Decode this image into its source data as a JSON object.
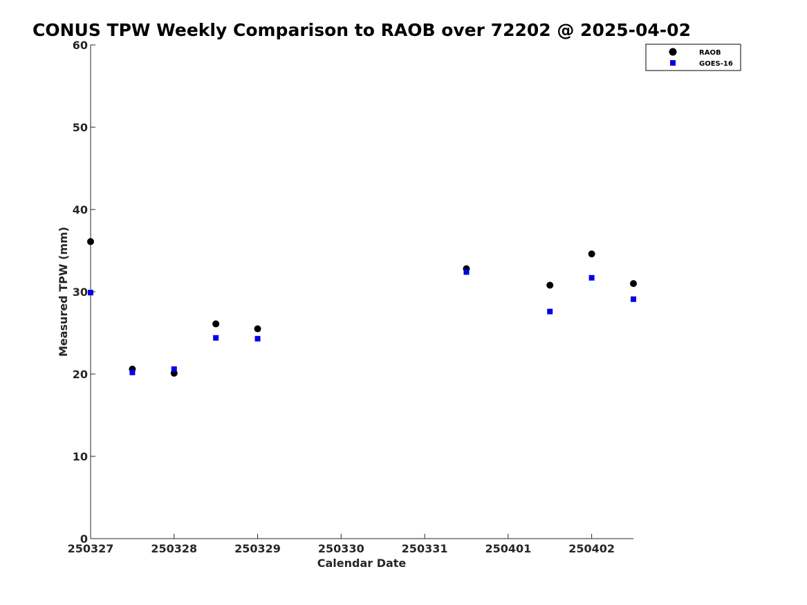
{
  "chart_data": {
    "type": "scatter",
    "title": "CONUS TPW Weekly Comparison to RAOB over 72202 @ 2025-04-02",
    "xlabel": "Calendar Date",
    "ylabel": "Measured TPW (mm)",
    "x_tick_labels": [
      "250327",
      "250328",
      "250329",
      "250330",
      "250331",
      "250401",
      "250402"
    ],
    "y_tick_labels": [
      "0",
      "10",
      "20",
      "30",
      "40",
      "50",
      "60"
    ],
    "ylim": [
      0,
      60
    ],
    "xlim": [
      "2025-03-27 00:00",
      "2025-04-02 12:00"
    ],
    "grid": false,
    "legend_position": "top-right",
    "series": [
      {
        "name": "RAOB",
        "marker": "circle",
        "color": "#000000",
        "points": [
          {
            "x": "2025-03-27 00:00",
            "y": 36.1
          },
          {
            "x": "2025-03-27 12:00",
            "y": 20.6
          },
          {
            "x": "2025-03-28 00:00",
            "y": 20.1
          },
          {
            "x": "2025-03-28 12:00",
            "y": 26.1
          },
          {
            "x": "2025-03-29 00:00",
            "y": 25.5
          },
          {
            "x": "2025-03-31 12:00",
            "y": 32.8
          },
          {
            "x": "2025-04-01 12:00",
            "y": 30.8
          },
          {
            "x": "2025-04-02 00:00",
            "y": 34.6
          },
          {
            "x": "2025-04-02 12:00",
            "y": 31.0
          }
        ]
      },
      {
        "name": "GOES-16",
        "marker": "square",
        "color": "#0000e6",
        "points": [
          {
            "x": "2025-03-27 00:00",
            "y": 29.9
          },
          {
            "x": "2025-03-27 12:00",
            "y": 20.2
          },
          {
            "x": "2025-03-28 00:00",
            "y": 20.6
          },
          {
            "x": "2025-03-28 12:00",
            "y": 24.4
          },
          {
            "x": "2025-03-29 00:00",
            "y": 24.3
          },
          {
            "x": "2025-03-31 12:00",
            "y": 32.4
          },
          {
            "x": "2025-04-01 12:00",
            "y": 27.6
          },
          {
            "x": "2025-04-02 00:00",
            "y": 31.7
          },
          {
            "x": "2025-04-02 12:00",
            "y": 29.1
          }
        ]
      }
    ]
  }
}
